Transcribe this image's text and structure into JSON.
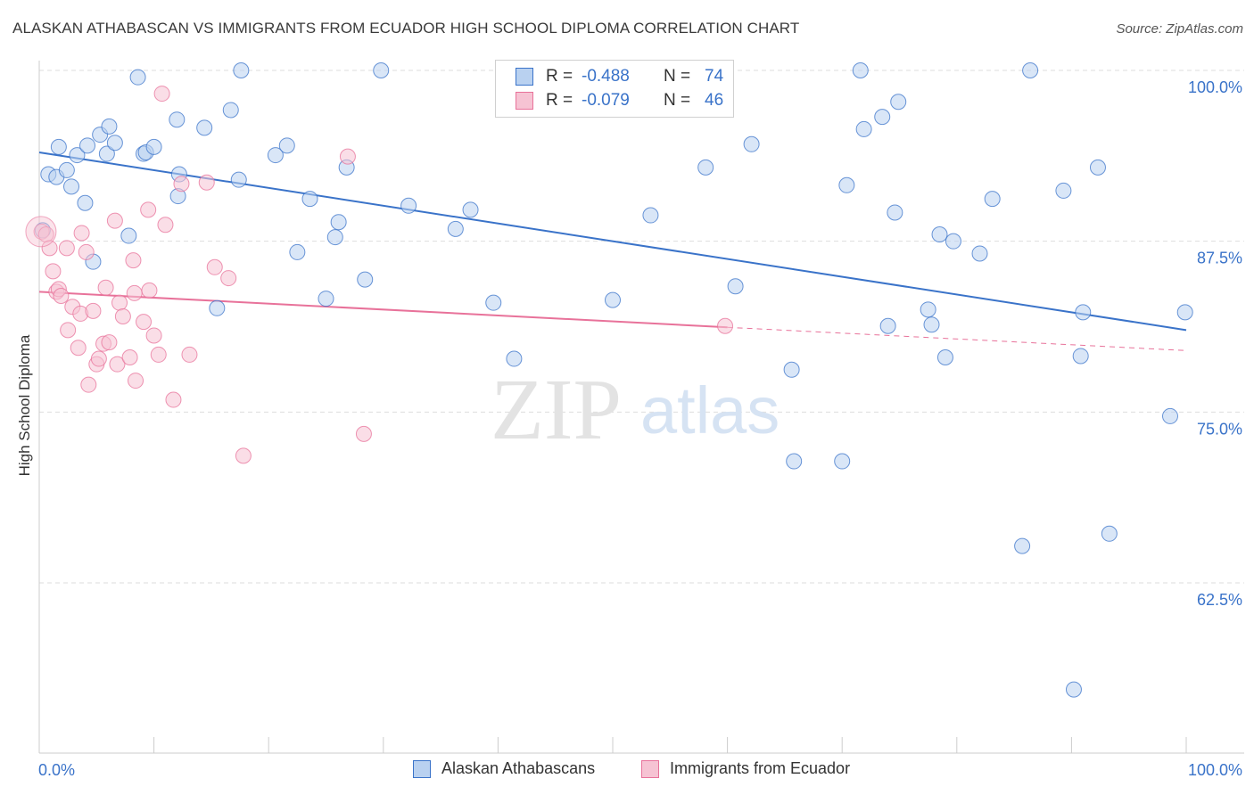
{
  "title": "ALASKAN ATHABASCAN VS IMMIGRANTS FROM ECUADOR HIGH SCHOOL DIPLOMA CORRELATION CHART",
  "source": "Source: ZipAtlas.com",
  "watermark": {
    "zip": "ZIP",
    "atlas": "atlas"
  },
  "colors": {
    "blue": "#3a73c9",
    "blue_fill": "#b9d1f0",
    "pink": "#e8729a",
    "pink_fill": "#f6c3d3",
    "grid": "#dddddd"
  },
  "legend": {
    "rows": [
      {
        "r_label": "R =",
        "r_value": "-0.488",
        "n_label": "N =",
        "n_value": "74"
      },
      {
        "r_label": "R =",
        "r_value": "-0.079",
        "n_label": "N =",
        "n_value": "46"
      }
    ]
  },
  "chart_data": {
    "type": "scatter",
    "title": "ALASKAN ATHABASCAN VS IMMIGRANTS FROM ECUADOR HIGH SCHOOL DIPLOMA CORRELATION CHART",
    "xlabel": "",
    "ylabel": "High School Diploma",
    "x_ticks": [
      "0.0%",
      "100.0%"
    ],
    "y_ticks": [
      "100.0%",
      "87.5%",
      "75.0%",
      "62.5%"
    ],
    "y_tick_values": [
      100,
      87.5,
      75,
      62.5
    ],
    "xlim": [
      0,
      100
    ],
    "ylim": [
      50.5,
      101.5
    ],
    "grid": true,
    "legend_position": "top-center",
    "series": [
      {
        "name": "Alaskan Athabascans",
        "color": "#3a73c9",
        "trend": {
          "x": [
            0,
            100
          ],
          "y": [
            94.0,
            81.0
          ]
        },
        "points": [
          [
            0.3,
            88.3
          ],
          [
            0.8,
            92.4
          ],
          [
            1.5,
            92.2
          ],
          [
            1.7,
            94.4
          ],
          [
            2.4,
            92.7
          ],
          [
            2.8,
            91.5
          ],
          [
            3.3,
            93.8
          ],
          [
            4.0,
            90.3
          ],
          [
            4.2,
            94.5
          ],
          [
            4.7,
            86.0
          ],
          [
            5.3,
            95.3
          ],
          [
            5.9,
            93.9
          ],
          [
            6.1,
            95.9
          ],
          [
            6.6,
            94.7
          ],
          [
            7.8,
            87.9
          ],
          [
            8.6,
            99.5
          ],
          [
            9.1,
            93.9
          ],
          [
            9.3,
            94.0
          ],
          [
            10.0,
            94.4
          ],
          [
            12.0,
            96.4
          ],
          [
            12.1,
            90.8
          ],
          [
            12.2,
            92.4
          ],
          [
            14.4,
            95.8
          ],
          [
            15.5,
            82.6
          ],
          [
            16.7,
            97.1
          ],
          [
            17.4,
            92.0
          ],
          [
            17.6,
            100.0
          ],
          [
            20.6,
            93.8
          ],
          [
            21.6,
            94.5
          ],
          [
            22.5,
            86.7
          ],
          [
            23.6,
            90.6
          ],
          [
            25.0,
            83.3
          ],
          [
            25.8,
            87.8
          ],
          [
            26.1,
            88.9
          ],
          [
            26.8,
            92.9
          ],
          [
            28.4,
            84.7
          ],
          [
            29.8,
            100.0
          ],
          [
            32.2,
            90.1
          ],
          [
            36.3,
            88.4
          ],
          [
            37.6,
            89.8
          ],
          [
            39.6,
            83.0
          ],
          [
            41.4,
            78.9
          ],
          [
            50.0,
            83.2
          ],
          [
            53.3,
            89.4
          ],
          [
            58.1,
            92.9
          ],
          [
            60.7,
            84.2
          ],
          [
            62.1,
            94.6
          ],
          [
            65.6,
            78.1
          ],
          [
            65.8,
            71.4
          ],
          [
            70.0,
            71.4
          ],
          [
            70.4,
            91.6
          ],
          [
            71.6,
            100.0
          ],
          [
            71.9,
            95.7
          ],
          [
            73.5,
            96.6
          ],
          [
            74.0,
            81.3
          ],
          [
            74.6,
            89.6
          ],
          [
            74.9,
            97.7
          ],
          [
            77.5,
            82.5
          ],
          [
            77.8,
            81.4
          ],
          [
            78.5,
            88.0
          ],
          [
            79.0,
            79.0
          ],
          [
            79.7,
            87.5
          ],
          [
            82.0,
            86.6
          ],
          [
            83.1,
            90.6
          ],
          [
            85.7,
            65.2
          ],
          [
            86.4,
            100.0
          ],
          [
            89.3,
            91.2
          ],
          [
            90.2,
            54.7
          ],
          [
            90.8,
            79.1
          ],
          [
            91.0,
            82.3
          ],
          [
            92.3,
            92.9
          ],
          [
            93.3,
            66.1
          ],
          [
            98.6,
            74.7
          ],
          [
            99.9,
            82.3
          ]
        ]
      },
      {
        "name": "Immigrants from Ecuador",
        "color": "#e8729a",
        "trend": {
          "x": [
            0,
            60
          ],
          "y": [
            83.8,
            81.2
          ]
        },
        "trend_dashed": {
          "x": [
            60,
            100
          ],
          "y": [
            81.2,
            79.5
          ]
        },
        "points": [
          [
            0.2,
            88.2
          ],
          [
            0.6,
            88.0
          ],
          [
            0.9,
            87.0
          ],
          [
            1.2,
            85.3
          ],
          [
            1.5,
            83.8
          ],
          [
            1.7,
            84.0
          ],
          [
            1.9,
            83.5
          ],
          [
            2.4,
            87.0
          ],
          [
            2.5,
            81.0
          ],
          [
            2.9,
            82.7
          ],
          [
            3.4,
            79.7
          ],
          [
            3.6,
            82.2
          ],
          [
            3.7,
            88.1
          ],
          [
            4.1,
            86.7
          ],
          [
            4.3,
            77.0
          ],
          [
            4.7,
            82.4
          ],
          [
            5.0,
            78.5
          ],
          [
            5.2,
            78.9
          ],
          [
            5.6,
            80.0
          ],
          [
            5.8,
            84.1
          ],
          [
            6.1,
            80.1
          ],
          [
            6.6,
            89.0
          ],
          [
            6.8,
            78.5
          ],
          [
            7.0,
            83.0
          ],
          [
            7.3,
            82.0
          ],
          [
            7.9,
            79.0
          ],
          [
            8.2,
            86.1
          ],
          [
            8.3,
            83.7
          ],
          [
            8.4,
            77.3
          ],
          [
            9.1,
            81.6
          ],
          [
            9.5,
            89.8
          ],
          [
            9.6,
            83.9
          ],
          [
            10.0,
            80.6
          ],
          [
            10.4,
            79.2
          ],
          [
            10.7,
            98.3
          ],
          [
            11.0,
            88.7
          ],
          [
            11.7,
            75.9
          ],
          [
            12.4,
            91.7
          ],
          [
            13.1,
            79.2
          ],
          [
            14.6,
            91.8
          ],
          [
            15.3,
            85.6
          ],
          [
            16.5,
            84.8
          ],
          [
            17.8,
            71.8
          ],
          [
            26.9,
            93.7
          ],
          [
            28.3,
            73.4
          ],
          [
            59.8,
            81.3
          ]
        ]
      }
    ]
  },
  "bottom_legend": [
    {
      "label": "Alaskan Athabascans"
    },
    {
      "label": "Immigrants from Ecuador"
    }
  ]
}
